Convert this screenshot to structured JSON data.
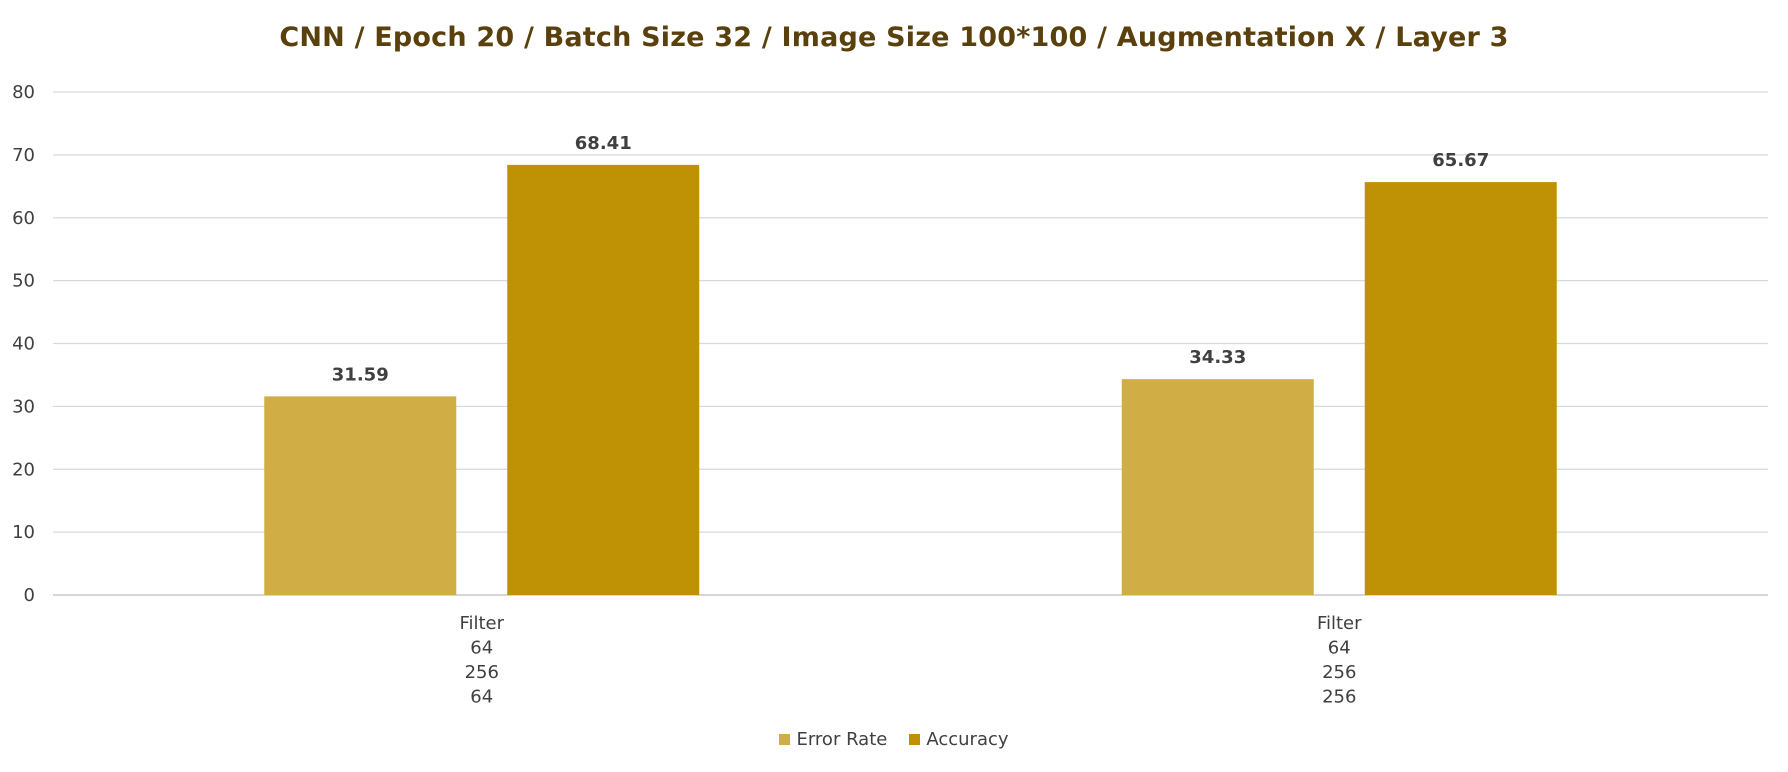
{
  "chart_data": {
    "type": "bar",
    "title": "CNN / Epoch 20 / Batch Size 32 / Image Size 100*100 / Augmentation X / Layer 3",
    "xlabel": "",
    "ylabel": "",
    "ylim": [
      0,
      80
    ],
    "ytick_step": 10,
    "grid": true,
    "legend_position": "bottom",
    "categories": [
      [
        "Filter",
        "64",
        "256",
        "64"
      ],
      [
        "Filter",
        "64",
        "256",
        "256"
      ]
    ],
    "series": [
      {
        "name": "Error Rate",
        "color": "#d0ae45",
        "values": [
          31.59,
          34.33
        ]
      },
      {
        "name": "Accuracy",
        "color": "#bf9205",
        "values": [
          68.41,
          65.67
        ]
      }
    ]
  }
}
